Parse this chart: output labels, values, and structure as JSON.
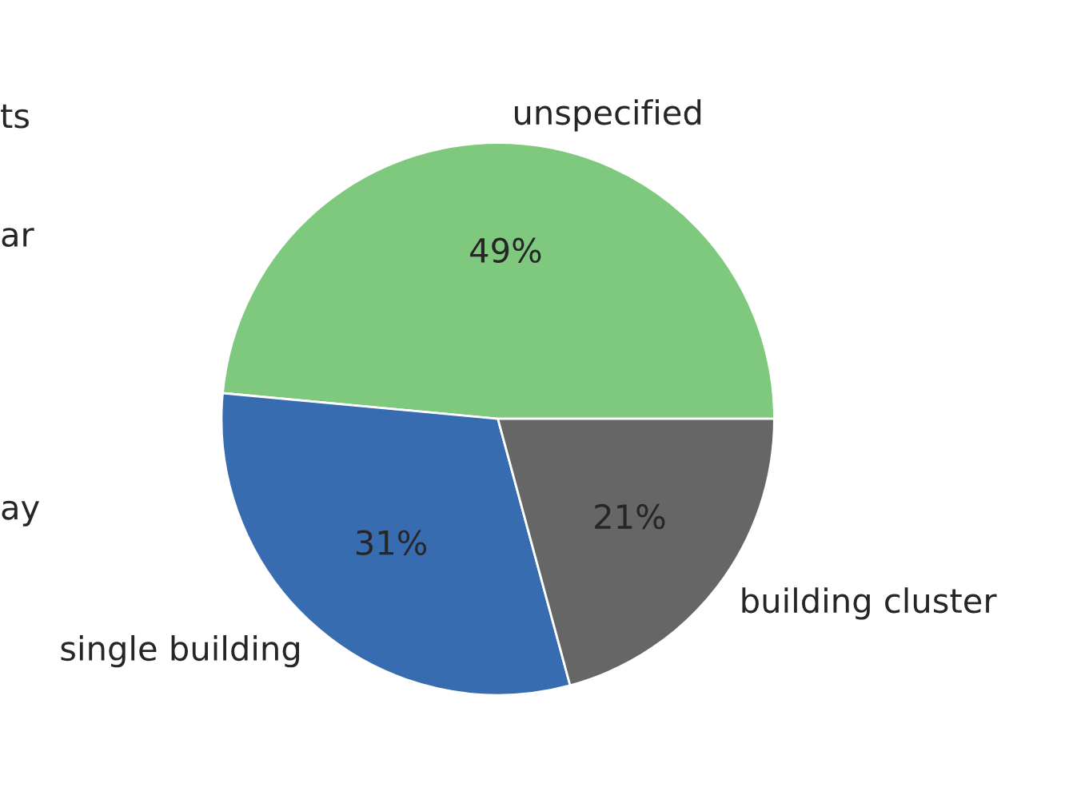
{
  "chart_data": {
    "type": "pie",
    "categories": [
      "unspecified",
      "single building",
      "building cluster"
    ],
    "values": [
      49,
      31,
      21
    ],
    "colors": [
      "#7fc97f",
      "#386cb0",
      "#666666"
    ],
    "value_labels": [
      "49%",
      "31%",
      "21%"
    ],
    "annotations": [
      "ts",
      "ar",
      "ay"
    ]
  }
}
